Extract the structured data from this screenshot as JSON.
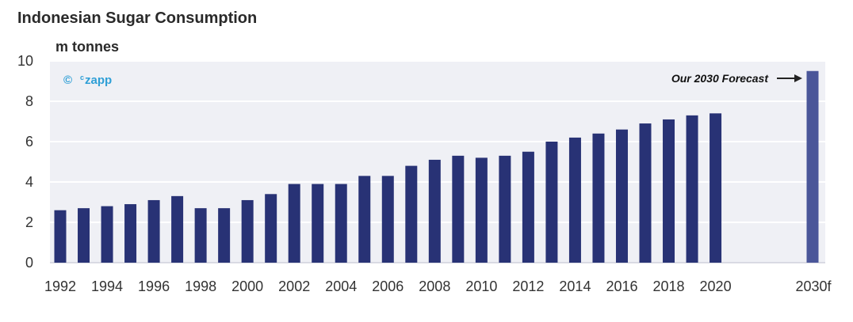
{
  "chart_data": {
    "type": "bar",
    "title": "Indonesian Sugar Consumption",
    "ylabel": "m tonnes",
    "ylim": [
      0,
      10
    ],
    "yticks": [
      0,
      2,
      4,
      6,
      8,
      10
    ],
    "categories": [
      "1992",
      "1993",
      "1994",
      "1995",
      "1996",
      "1997",
      "1998",
      "1999",
      "2000",
      "2001",
      "2002",
      "2003",
      "2004",
      "2005",
      "2006",
      "2007",
      "2008",
      "2009",
      "2010",
      "2011",
      "2012",
      "2013",
      "2014",
      "2015",
      "2016",
      "2017",
      "2018",
      "2019",
      "2020",
      "2030f"
    ],
    "x_tick_labels": [
      "1992",
      "1994",
      "1996",
      "1998",
      "2000",
      "2002",
      "2004",
      "2006",
      "2008",
      "2010",
      "2012",
      "2014",
      "2016",
      "2018",
      "2020",
      "2030f"
    ],
    "values": [
      2.6,
      2.7,
      2.8,
      2.9,
      3.1,
      3.3,
      2.7,
      2.7,
      3.1,
      3.4,
      3.9,
      3.9,
      3.9,
      4.3,
      4.3,
      4.8,
      5.1,
      5.3,
      5.2,
      5.3,
      5.5,
      6.0,
      6.2,
      6.4,
      6.6,
      6.9,
      7.1,
      7.3,
      7.4,
      9.5
    ],
    "bar_color": "#283275",
    "forecast_bar_color": "#4a5699",
    "plot_background": "#eff0f5",
    "grid": true,
    "annotation": "Our 2030 Forecast",
    "watermark": "© czapp"
  },
  "brand": {
    "copyright": "©",
    "superscript": "c",
    "name": "zapp"
  }
}
